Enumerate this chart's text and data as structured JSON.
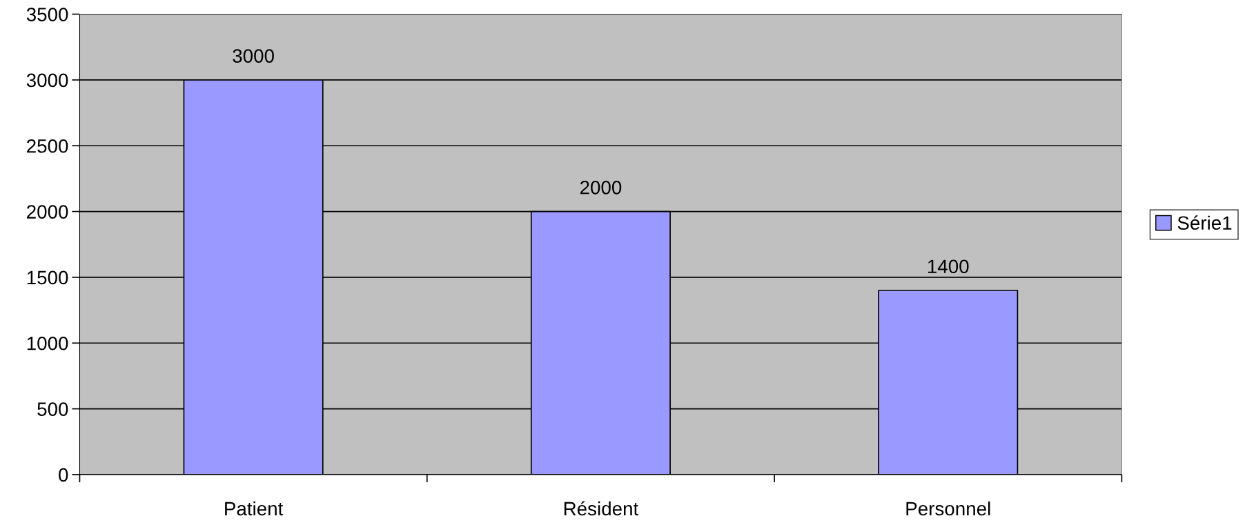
{
  "chart_data": {
    "type": "bar",
    "categories": [
      "Patient",
      "Résident",
      "Personnel"
    ],
    "series": [
      {
        "name": "Série1",
        "color": "#9999ff",
        "values": [
          3000,
          2000,
          1400
        ]
      }
    ],
    "ylim": [
      0,
      3500
    ],
    "yticks": [
      0,
      500,
      1000,
      1500,
      2000,
      2500,
      3000,
      3500
    ],
    "grid": "y",
    "legend": "right",
    "data_labels": true
  }
}
